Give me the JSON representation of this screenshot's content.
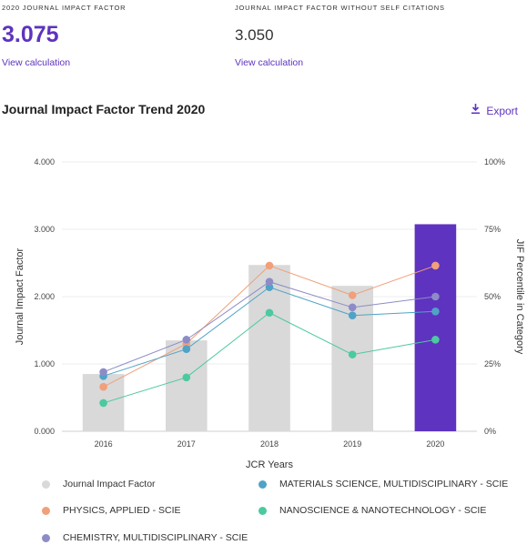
{
  "metrics": {
    "jif_label": "2020 JOURNAL IMPACT FACTOR",
    "jif_value": "3.075",
    "jif_link": "View calculation",
    "jif_no_self_label": "JOURNAL IMPACT FACTOR WITHOUT SELF CITATIONS",
    "jif_no_self_value": "3.050",
    "jif_no_self_link": "View calculation"
  },
  "section": {
    "title": "Journal Impact Factor Trend 2020",
    "export_label": "Export",
    "export_icon": "download-icon"
  },
  "colors": {
    "accent": "#5e33bf",
    "bar": "#d9d9d9",
    "highlight_bar": "#5e33bf",
    "physics": "#f0a07a",
    "materials": "#4fa3c7",
    "nano": "#4cc9a0",
    "chemistry": "#8d8cc7"
  },
  "chart_data": {
    "type": "bar",
    "xlabel": "JCR Years",
    "ylabel": "Journal Impact Factor",
    "y2label": "JIF Percentile in Category",
    "categories": [
      "2016",
      "2017",
      "2018",
      "2019",
      "2020"
    ],
    "ylim": [
      0,
      4
    ],
    "y_ticks": [
      "0.000",
      "1.000",
      "2.000",
      "3.000",
      "4.000"
    ],
    "y2lim": [
      0,
      100
    ],
    "y2_ticks": [
      "0%",
      "25%",
      "50%",
      "75%",
      "100%"
    ],
    "bars": {
      "name": "Journal Impact Factor",
      "values": [
        0.85,
        1.35,
        2.47,
        2.16,
        3.075
      ],
      "highlight_index": 4
    },
    "series": [
      {
        "name": "PHYSICS, APPLIED - SCIE",
        "color": "#f0a07a",
        "values": [
          16.5,
          32.5,
          61.5,
          50.5,
          61.5
        ]
      },
      {
        "name": "MATERIALS SCIENCE, MULTIDISCIPLINARY - SCIE",
        "color": "#4fa3c7",
        "values": [
          20.5,
          30.5,
          53.5,
          43,
          44.5
        ]
      },
      {
        "name": "NANOSCIENCE & NANOTECHNOLOGY - SCIE",
        "color": "#4cc9a0",
        "values": [
          10.5,
          20,
          44,
          28.5,
          34
        ]
      },
      {
        "name": "CHEMISTRY, MULTIDISCIPLINARY - SCIE",
        "color": "#8d8cc7",
        "values": [
          22,
          34,
          55.5,
          46,
          50
        ]
      }
    ],
    "grid": true,
    "legend_placement": "bottom"
  },
  "legend": [
    {
      "label": "Journal Impact Factor",
      "color": "#d9d9d9"
    },
    {
      "label": "MATERIALS SCIENCE, MULTIDISCIPLINARY - SCIE",
      "color": "#4fa3c7"
    },
    {
      "label": "PHYSICS, APPLIED - SCIE",
      "color": "#f0a07a"
    },
    {
      "label": "NANOSCIENCE & NANOTECHNOLOGY - SCIE",
      "color": "#4cc9a0"
    },
    {
      "label": "CHEMISTRY, MULTIDISCIPLINARY - SCIE",
      "color": "#8d8cc7"
    }
  ]
}
